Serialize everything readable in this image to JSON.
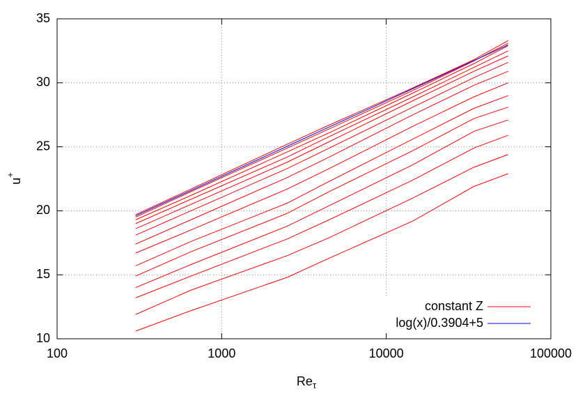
{
  "chart_data": {
    "type": "line",
    "x_label": "Re",
    "x_label_sub": "τ",
    "y_label": "u",
    "y_label_sup": "+",
    "x_log": true,
    "grid": true,
    "legend": "bottom-right",
    "xlim": [
      100,
      100000
    ],
    "xticks": [
      100,
      1000,
      10000,
      100000
    ],
    "ylim": [
      10,
      35
    ],
    "yticks": [
      10,
      15,
      20,
      25,
      30,
      35
    ],
    "x": [
      300,
      650,
      2500,
      4500,
      14500,
      34000,
      55000
    ],
    "series": [
      {
        "name": "constant Z",
        "color": "#ff0000",
        "values": [
          10.6,
          12.2,
          14.8,
          16.3,
          19.2,
          21.9,
          22.9
        ]
      },
      {
        "color": "#ff0000",
        "values": [
          11.9,
          13.8,
          16.5,
          17.9,
          21.0,
          23.4,
          24.4
        ]
      },
      {
        "color": "#ff0000",
        "values": [
          13.2,
          14.9,
          17.8,
          19.3,
          22.4,
          24.9,
          25.9
        ]
      },
      {
        "color": "#ff0000",
        "values": [
          14.0,
          15.8,
          18.8,
          20.4,
          23.6,
          26.2,
          27.1
        ]
      },
      {
        "color": "#ff0000",
        "values": [
          14.9,
          16.8,
          19.8,
          21.5,
          24.7,
          27.2,
          28.1
        ]
      },
      {
        "color": "#ff0000",
        "values": [
          15.7,
          17.6,
          20.6,
          22.3,
          25.6,
          28.0,
          29.0
        ]
      },
      {
        "color": "#ff0000",
        "values": [
          16.7,
          18.5,
          21.7,
          23.3,
          26.6,
          28.9,
          30.0
        ]
      },
      {
        "color": "#ff0000",
        "values": [
          17.4,
          19.3,
          22.6,
          24.2,
          27.5,
          29.8,
          30.9
        ]
      },
      {
        "color": "#ff0000",
        "values": [
          18.1,
          20.0,
          23.3,
          24.9,
          28.1,
          30.4,
          31.6
        ]
      },
      {
        "color": "#ff0000",
        "values": [
          18.6,
          20.5,
          23.8,
          25.4,
          28.6,
          30.9,
          32.1
        ]
      },
      {
        "color": "#ff0000",
        "values": [
          19.0,
          20.9,
          24.2,
          25.8,
          28.9,
          31.2,
          32.5
        ]
      },
      {
        "color": "#ff0000",
        "values": [
          19.3,
          21.2,
          24.6,
          26.1,
          29.2,
          31.5,
          32.9
        ]
      },
      {
        "color": "#ff0000",
        "values": [
          19.5,
          21.5,
          24.9,
          26.4,
          29.4,
          31.7,
          33.1
        ]
      },
      {
        "color": "#ff0000",
        "values": [
          19.7,
          21.7,
          25.2,
          26.7,
          29.6,
          31.8,
          33.3
        ]
      },
      {
        "name": "log(x)/0.3904+5",
        "color": "#0000ff",
        "values": [
          19.61,
          21.59,
          25.04,
          26.55,
          29.54,
          31.73,
          32.96
        ]
      }
    ]
  }
}
